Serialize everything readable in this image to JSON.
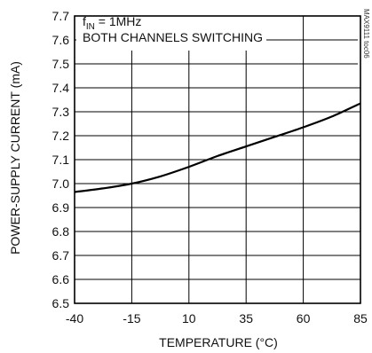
{
  "chart_data": {
    "type": "line",
    "title": "",
    "xlabel": "TEMPERATURE (°C)",
    "ylabel": "POWER-SUPPLY CURRENT (mA)",
    "xlim": [
      -40,
      85
    ],
    "ylim": [
      6.5,
      7.7
    ],
    "xticks": [
      "-40",
      "-15",
      "10",
      "35",
      "60",
      "85"
    ],
    "yticks": [
      "6.5",
      "6.6",
      "6.7",
      "6.8",
      "6.9",
      "7.0",
      "7.1",
      "7.2",
      "7.3",
      "7.4",
      "7.5",
      "7.6",
      "7.7"
    ],
    "grid": true,
    "annotation": {
      "f_symbol": "f",
      "f_subscript": "IN",
      "f_value": " = 1MHz",
      "line2": "BOTH CHANNELS SWITCHING"
    },
    "figure_code": "MAX9111 toc06",
    "series": [
      {
        "x": [
          -40,
          -27.5,
          -15,
          -2.5,
          10,
          22.5,
          35,
          47.5,
          60,
          72.5,
          85
        ],
        "y": [
          6.965,
          6.98,
          7.0,
          7.03,
          7.07,
          7.115,
          7.155,
          7.195,
          7.235,
          7.28,
          7.335
        ]
      }
    ],
    "colors": {
      "line": "#000000",
      "grid": "#000000",
      "axis": "#000000"
    }
  }
}
